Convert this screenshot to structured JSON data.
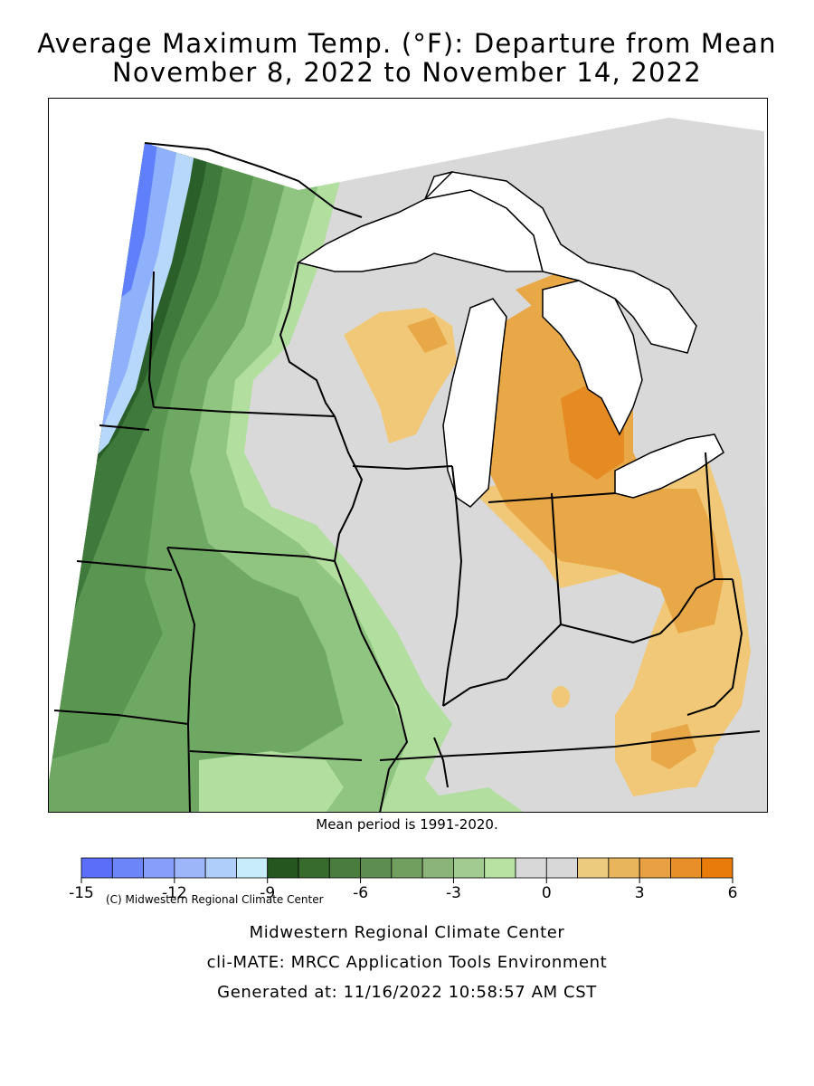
{
  "title": {
    "line1": "Average Maximum Temp. (°F): Departure from Mean",
    "line2": "November 8, 2022 to November 14, 2022"
  },
  "map": {
    "credit": "(C) Midwestern Regional Climate Center",
    "mean_note": "Mean period is 1991-2020.",
    "colors": {
      "water": "#ffffff",
      "neutral": "#d9d9d9",
      "pale_green": "#b2dfa0",
      "light_green": "#8fc481",
      "mid_green": "#6ea862",
      "green": "#5a9652",
      "dark_green": "#3f7a3c",
      "darkest_green": "#2b5f2a",
      "light_blue": "#b8d8fb",
      "blue": "#8fb0fb",
      "deep_blue": "#5f7ffb",
      "pale_orange": "#f1c878",
      "orange": "#e8a848",
      "deep_orange": "#e58b22"
    }
  },
  "legend": {
    "bins": [
      {
        "color": "#5a6efa"
      },
      {
        "color": "#6c86f9"
      },
      {
        "color": "#889ff9"
      },
      {
        "color": "#9cb6f9"
      },
      {
        "color": "#b0cefa"
      },
      {
        "color": "#c8ecfa"
      },
      {
        "color": "#25561f"
      },
      {
        "color": "#376b2d"
      },
      {
        "color": "#4a7c3d"
      },
      {
        "color": "#5d8d4f"
      },
      {
        "color": "#709f60"
      },
      {
        "color": "#8ab478"
      },
      {
        "color": "#a2cb8f"
      },
      {
        "color": "#b8e2a2"
      },
      {
        "color": "#d8d8d8"
      },
      {
        "color": "#d8d8d8"
      },
      {
        "color": "#ecca7e"
      },
      {
        "color": "#e8b45c"
      },
      {
        "color": "#e8a043"
      },
      {
        "color": "#e88f2a"
      },
      {
        "color": "#e87b09"
      }
    ],
    "tick_labels": [
      "-15",
      "-12",
      "-9",
      "-6",
      "-3",
      "0",
      "3",
      "6"
    ]
  },
  "footer": {
    "line1": "Midwestern Regional Climate Center",
    "line2": "cli-MATE: MRCC Application Tools Environment",
    "line3": "Generated at: 11/16/2022 10:58:57 AM CST"
  }
}
